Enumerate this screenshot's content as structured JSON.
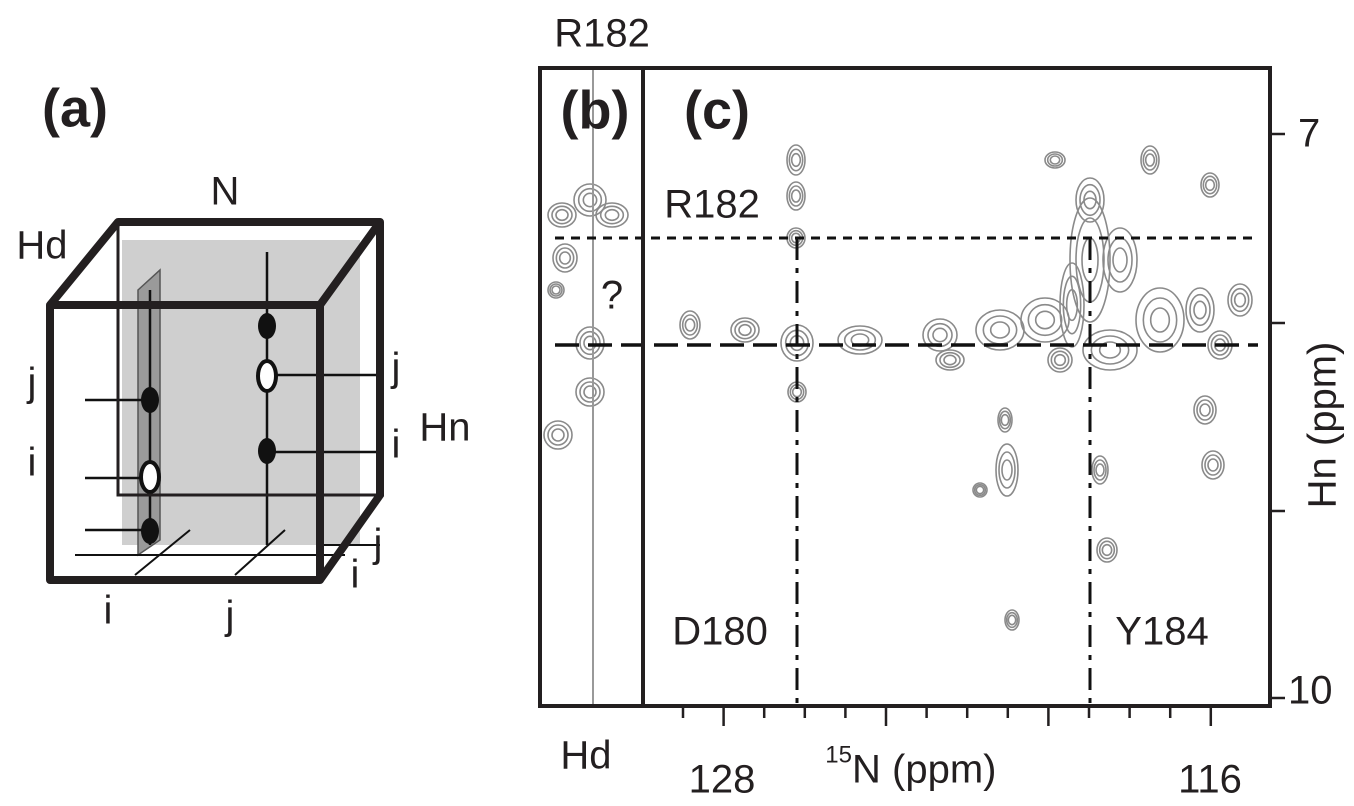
{
  "panel_a": {
    "label": "(a)",
    "axis_n": "N",
    "axis_hd": "Hd",
    "axis_hn": "Hn",
    "labels_left": [
      "j",
      "i"
    ],
    "labels_right": [
      "j",
      "i"
    ],
    "labels_floor_right": [
      "j",
      "i"
    ],
    "labels_bottom": [
      "i",
      "j"
    ]
  },
  "panel_b": {
    "label": "(b)",
    "title": "R182",
    "question": "?",
    "x_label": "Hd"
  },
  "panel_c": {
    "label": "(c)",
    "annotations": [
      "R182",
      "D180",
      "Y184"
    ],
    "x_axis": {
      "title_sup": "15",
      "title": "N (ppm)",
      "tick_labels": [
        "128",
        "116"
      ]
    },
    "y_axis": {
      "title": "Hn (ppm)",
      "tick_labels": [
        "7",
        "10"
      ]
    }
  }
}
